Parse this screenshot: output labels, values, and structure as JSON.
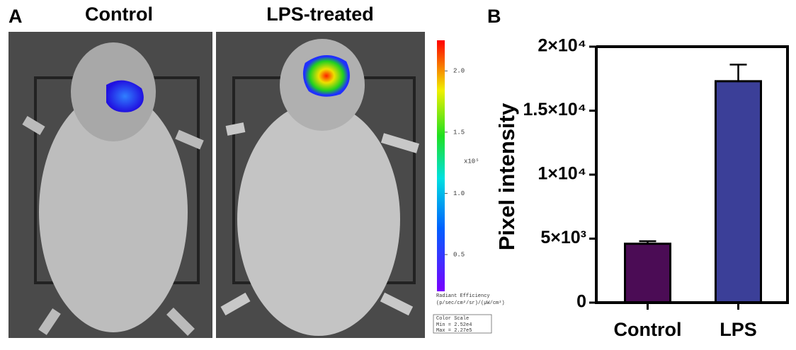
{
  "panel_a": {
    "label": "A",
    "images": [
      "Control",
      "LPS-treated"
    ],
    "colorbar": {
      "ylim": [
        0.2,
        2.25
      ],
      "ticks": [
        {
          "value": 0.5,
          "label": "0.5"
        },
        {
          "value": 1,
          "label": "1.0"
        },
        {
          "value": 1.5,
          "label": "1.5"
        },
        {
          "value": 2,
          "label": "2.0"
        }
      ],
      "unit": "x10⁵"
    },
    "legend": [
      "Radiant Efficiency",
      "(p/sec/cm²/sr)/(µW/cm²)",
      "Color Scale",
      "Min = 2.52e4",
      "Max = 2.27e5"
    ]
  },
  "chart_data": {
    "type": "bar",
    "panel_label": "B",
    "y_label": "Pixel intensity",
    "categories": [
      "Control",
      "LPS"
    ],
    "values": [
      4600,
      17300
    ],
    "errors": [
      200,
      1300
    ],
    "colors": [
      "#4b0c55",
      "#3b3f98"
    ],
    "ylim": [
      0,
      20000
    ],
    "yticks": [
      0,
      {
        "value": 5000,
        "label": "5×10³"
      },
      {
        "value": 10000,
        "label": "1×10⁴"
      },
      {
        "value": 15000,
        "label": "1.5×10⁴"
      },
      {
        "value": 20000,
        "label": "2×10⁴"
      }
    ]
  }
}
